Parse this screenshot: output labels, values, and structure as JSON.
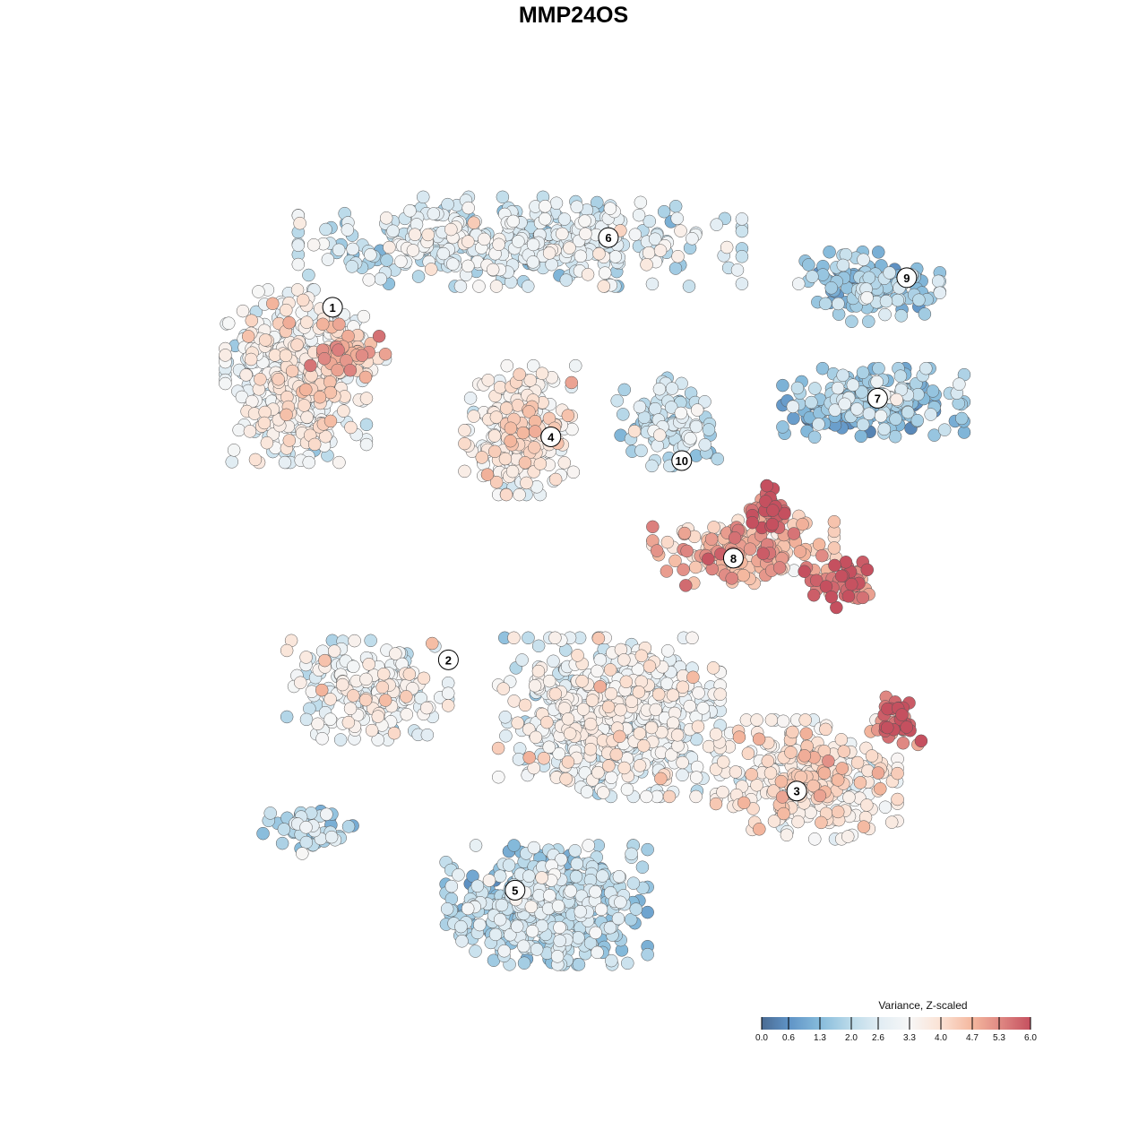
{
  "chart_data": {
    "type": "scatter",
    "title": "MMP24OS",
    "xlabel": "",
    "ylabel": "",
    "xlim": [
      0,
      100
    ],
    "ylim": [
      0,
      100
    ],
    "grid": false,
    "colorbar": {
      "title": "Variance, Z-scaled",
      "range": [
        0,
        6
      ],
      "ticks": [
        "0.0",
        "0.6",
        "1.3",
        "2.0",
        "2.6",
        "3.3",
        "4.0",
        "4.7",
        "5.3",
        "6.0"
      ],
      "tick_values": [
        0,
        0.6,
        1.3,
        2.0,
        2.6,
        3.3,
        4.0,
        4.7,
        5.3,
        6.0
      ],
      "colors": [
        "#4a6b93",
        "#5f93c6",
        "#86bbdb",
        "#bcdbea",
        "#e0ecf3",
        "#f7f7f7",
        "#fbe2d4",
        "#f4b79e",
        "#e08a84",
        "#c5505f"
      ],
      "placement": "bottom-right"
    },
    "cluster_labels": [
      {
        "label": "1",
        "x": 18.4,
        "y": 82.2
      },
      {
        "label": "6",
        "x": 51.5,
        "y": 90.7
      },
      {
        "label": "9",
        "x": 87.3,
        "y": 85.8
      },
      {
        "label": "7",
        "x": 83.8,
        "y": 71.1
      },
      {
        "label": "4",
        "x": 44.6,
        "y": 66.4
      },
      {
        "label": "10",
        "x": 60.3,
        "y": 63.5
      },
      {
        "label": "8",
        "x": 66.5,
        "y": 51.6
      },
      {
        "label": "2",
        "x": 32.3,
        "y": 39.2
      },
      {
        "label": "3",
        "x": 74.1,
        "y": 23.2
      },
      {
        "label": "5",
        "x": 40.3,
        "y": 11.1
      }
    ],
    "point_groups": [
      {
        "cluster": "1",
        "cx": 14.0,
        "cy": 73.8,
        "sx": 7.0,
        "sy": 8.7,
        "n": 450,
        "mean": 3.2
      },
      {
        "cluster": "1",
        "cx": 19.9,
        "cy": 76.5,
        "sx": 4.0,
        "sy": 3.0,
        "n": 60,
        "mean": 4.4
      },
      {
        "cluster": "6",
        "cx": 40.9,
        "cy": 90.2,
        "sx": 22.0,
        "sy": 4.5,
        "n": 450,
        "mean": 2.5
      },
      {
        "cluster": "9",
        "cx": 82.8,
        "cy": 84.7,
        "sx": 7.0,
        "sy": 3.5,
        "n": 120,
        "mean": 1.6
      },
      {
        "cluster": "7",
        "cx": 83.3,
        "cy": 70.5,
        "sx": 9.0,
        "sy": 3.5,
        "n": 200,
        "mean": 1.5
      },
      {
        "cluster": "4",
        "cx": 40.9,
        "cy": 67.2,
        "sx": 5.5,
        "sy": 6.5,
        "n": 250,
        "mean": 3.5
      },
      {
        "cluster": "10",
        "cx": 58.6,
        "cy": 68.3,
        "sx": 5.0,
        "sy": 4.5,
        "n": 100,
        "mean": 2.2
      },
      {
        "cluster": "8",
        "cx": 67.7,
        "cy": 52.5,
        "sx": 9.0,
        "sy": 3.5,
        "n": 170,
        "mean": 4.6
      },
      {
        "cluster": "8",
        "cx": 71.0,
        "cy": 57.4,
        "sx": 2.5,
        "sy": 2.5,
        "n": 40,
        "mean": 5.8
      },
      {
        "cluster": "8",
        "cx": 79.0,
        "cy": 48.6,
        "sx": 3.5,
        "sy": 2.5,
        "n": 60,
        "mean": 5.4
      },
      {
        "cluster": "2",
        "cx": 22.6,
        "cy": 35.5,
        "sx": 8.0,
        "sy": 5.0,
        "n": 200,
        "mean": 3.0
      },
      {
        "cluster": "2",
        "cx": 15.6,
        "cy": 18.6,
        "sx": 5.0,
        "sy": 2.5,
        "n": 50,
        "mean": 2.0
      },
      {
        "cluster": "central",
        "cx": 51.6,
        "cy": 32.2,
        "sx": 11.0,
        "sy": 8.0,
        "n": 700,
        "mean": 2.9
      },
      {
        "cluster": "3",
        "cx": 75.3,
        "cy": 24.6,
        "sx": 9.0,
        "sy": 6.0,
        "n": 300,
        "mean": 3.7
      },
      {
        "cluster": "3",
        "cx": 86.0,
        "cy": 31.7,
        "sx": 2.5,
        "sy": 2.5,
        "n": 40,
        "mean": 5.6
      },
      {
        "cluster": "5",
        "cx": 44.1,
        "cy": 9.3,
        "sx": 10.0,
        "sy": 6.0,
        "n": 500,
        "mean": 2.0
      }
    ]
  }
}
